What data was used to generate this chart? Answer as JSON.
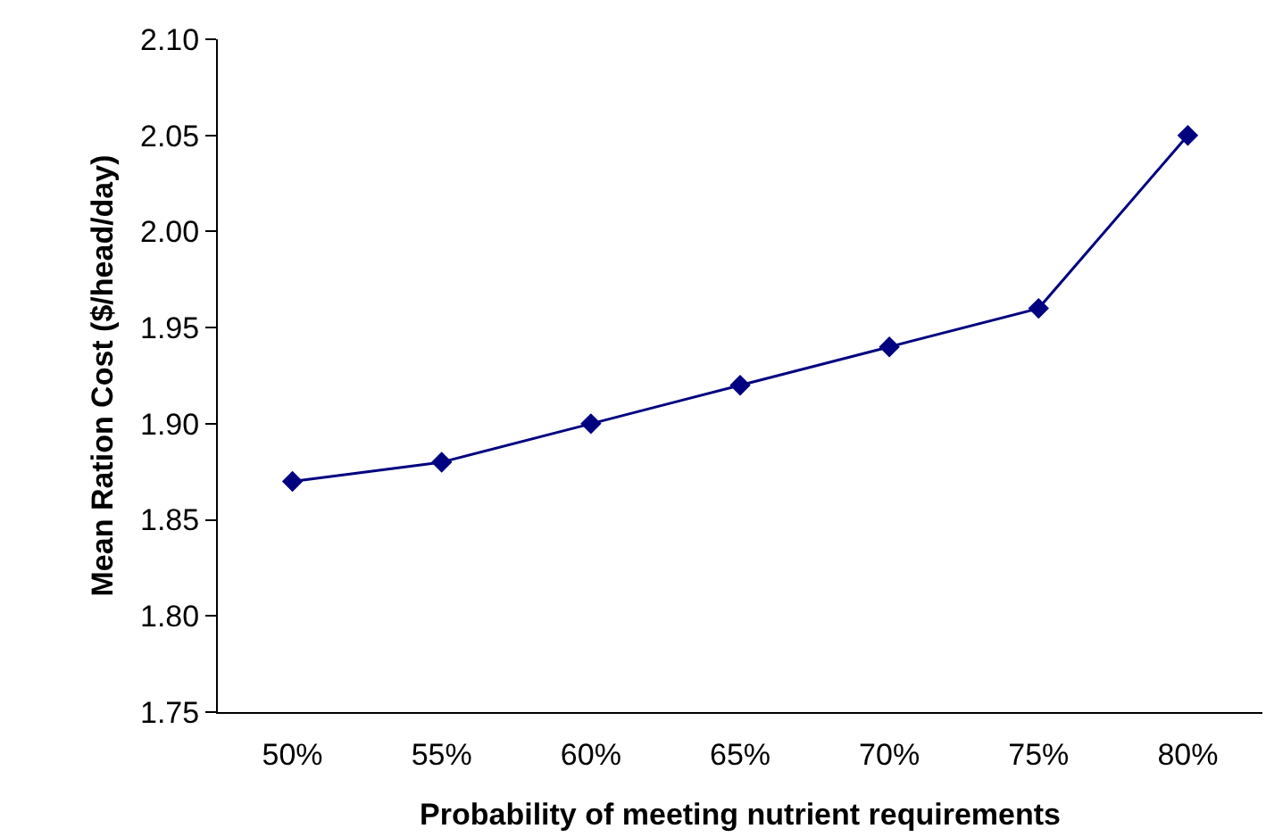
{
  "chart_data": {
    "type": "line",
    "xlabel": "Probability of meeting nutrient requirements",
    "ylabel": "Mean Ration Cost ($/head/day)",
    "categories": [
      "50%",
      "55%",
      "60%",
      "65%",
      "70%",
      "75%",
      "80%"
    ],
    "series": [
      {
        "color": "#000080",
        "values": [
          1.87,
          1.88,
          1.9,
          1.92,
          1.94,
          1.96,
          2.05
        ]
      }
    ],
    "ylim": [
      1.75,
      2.1
    ],
    "yticks": [
      1.75,
      {
        "value": 1.8,
        "label": "1.80"
      },
      1.85,
      {
        "value": 1.9,
        "label": "1.90"
      },
      1.95,
      {
        "value": 2,
        "label": "2.00"
      },
      2.05,
      {
        "value": 2.1,
        "label": "2.10"
      }
    ],
    "grid": false,
    "marker": "diamond",
    "line_style": "solid"
  }
}
